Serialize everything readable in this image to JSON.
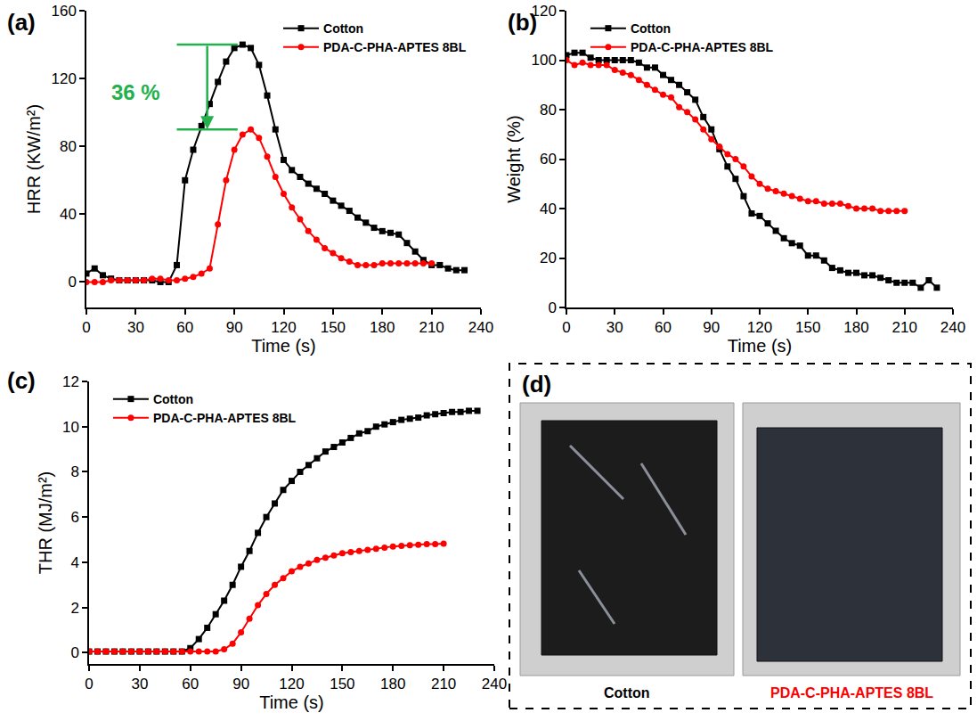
{
  "chart_data": [
    {
      "type": "line",
      "letter": "(a)",
      "x_label": "Time (s)",
      "y_label": "HRR (KW/m²)",
      "x": [
        0,
        5,
        10,
        15,
        20,
        25,
        30,
        35,
        40,
        45,
        50,
        55,
        60,
        65,
        70,
        75,
        80,
        85,
        90,
        95,
        100,
        105,
        110,
        115,
        120,
        125,
        130,
        135,
        140,
        145,
        150,
        155,
        160,
        165,
        170,
        175,
        180,
        185,
        190,
        195,
        200,
        205,
        210,
        215,
        220,
        225,
        230
      ],
      "series": [
        {
          "name": "Cotton",
          "color": "#000000",
          "marker": "square",
          "line_style": "solid",
          "values": [
            5,
            8,
            4,
            2,
            1,
            1,
            1,
            1,
            1,
            0,
            0,
            10,
            60,
            78,
            92,
            105,
            118,
            130,
            138,
            140,
            138,
            128,
            110,
            90,
            72,
            66,
            62,
            58,
            55,
            52,
            48,
            45,
            42,
            38,
            35,
            32,
            30,
            29,
            28,
            23,
            18,
            13,
            10,
            10,
            8,
            7,
            7
          ]
        },
        {
          "name": "PDA-C-PHA-APTES 8BL",
          "color": "#ff0000",
          "marker": "circle",
          "line_style": "solid",
          "values": [
            0,
            0,
            0,
            1,
            1,
            1,
            1,
            1,
            2,
            2,
            1,
            1,
            2,
            3,
            5,
            8,
            34,
            60,
            78,
            87,
            90,
            85,
            74,
            62,
            52,
            44,
            37,
            30,
            25,
            20,
            17,
            14,
            12,
            10,
            10,
            10,
            11,
            11,
            11,
            11,
            11,
            11,
            11,
            null,
            null,
            null,
            null
          ]
        }
      ],
      "xlim": [
        0,
        240
      ],
      "xticks": [
        0,
        30,
        60,
        90,
        120,
        150,
        180,
        210,
        240
      ],
      "ylim": [
        -15,
        160
      ],
      "yticks": [
        0,
        40,
        80,
        120,
        160
      ],
      "legend": "top right",
      "grid": false,
      "annotations": [
        {
          "text": "36 %",
          "x": 30,
          "y": 112,
          "color": "#22b14c",
          "x_span": [
            55,
            92
          ]
        }
      ]
    },
    {
      "type": "line",
      "letter": "(b)",
      "x_label": "Time (s)",
      "y_label": "Weight (%)",
      "x": [
        0,
        5,
        10,
        15,
        20,
        25,
        30,
        35,
        40,
        45,
        50,
        55,
        60,
        65,
        70,
        75,
        80,
        85,
        90,
        95,
        100,
        105,
        110,
        115,
        120,
        125,
        130,
        135,
        140,
        145,
        150,
        155,
        160,
        165,
        170,
        175,
        180,
        185,
        190,
        195,
        200,
        205,
        210,
        215,
        220,
        225,
        230
      ],
      "series": [
        {
          "name": "Cotton",
          "color": "#000000",
          "marker": "square",
          "line_style": "solid",
          "values": [
            102,
            103,
            103,
            101,
            100,
            100,
            100,
            100,
            100,
            99,
            97,
            97,
            94,
            92,
            90,
            87,
            84,
            77,
            72,
            64,
            57,
            52,
            45,
            38,
            37,
            34,
            31,
            28,
            26,
            25,
            21,
            21,
            19,
            16,
            15,
            14,
            14,
            13,
            13,
            12,
            11,
            10,
            10,
            10,
            8,
            11,
            8
          ]
        },
        {
          "name": "PDA-C-PHA-APTES 8BL",
          "color": "#ff0000",
          "marker": "circle",
          "line_style": "solid",
          "values": [
            100,
            98,
            99,
            98,
            98,
            98,
            96,
            95,
            94,
            92,
            90,
            88,
            86,
            85,
            81,
            79,
            76,
            72,
            68,
            65,
            62,
            60,
            57,
            53,
            50,
            48,
            47,
            46,
            45,
            44,
            43,
            43,
            42,
            42,
            42,
            41,
            40,
            40,
            40,
            39,
            39,
            39,
            39,
            null,
            null,
            null,
            null
          ]
        }
      ],
      "xlim": [
        0,
        240
      ],
      "xticks": [
        0,
        30,
        60,
        90,
        120,
        150,
        180,
        210,
        240
      ],
      "ylim": [
        0,
        120
      ],
      "yticks": [
        0,
        20,
        40,
        60,
        80,
        100,
        120
      ],
      "legend": "top left",
      "grid": false
    },
    {
      "type": "line",
      "letter": "(c)",
      "x_label": "Time (s)",
      "y_label": "THR (MJ/m²)",
      "x": [
        0,
        5,
        10,
        15,
        20,
        25,
        30,
        35,
        40,
        45,
        50,
        55,
        60,
        65,
        70,
        75,
        80,
        85,
        90,
        95,
        100,
        105,
        110,
        115,
        120,
        125,
        130,
        135,
        140,
        145,
        150,
        155,
        160,
        165,
        170,
        175,
        180,
        185,
        190,
        195,
        200,
        205,
        210,
        215,
        220,
        225,
        230
      ],
      "series": [
        {
          "name": "Cotton",
          "color": "#000000",
          "marker": "square",
          "line_style": "solid",
          "values": [
            0.05,
            0.05,
            0.05,
            0.05,
            0.05,
            0.05,
            0.05,
            0.05,
            0.05,
            0.05,
            0.05,
            0.05,
            0.2,
            0.6,
            1.1,
            1.7,
            2.3,
            3.0,
            3.8,
            4.5,
            5.3,
            6.0,
            6.6,
            7.2,
            7.6,
            8.0,
            8.3,
            8.6,
            8.9,
            9.1,
            9.3,
            9.5,
            9.7,
            9.8,
            10.0,
            10.1,
            10.2,
            10.3,
            10.35,
            10.4,
            10.5,
            10.55,
            10.6,
            10.65,
            10.65,
            10.7,
            10.7
          ]
        },
        {
          "name": "PDA-C-PHA-APTES 8BL",
          "color": "#ff0000",
          "marker": "circle",
          "line_style": "solid",
          "values": [
            0.05,
            0.05,
            0.05,
            0.05,
            0.05,
            0.05,
            0.05,
            0.05,
            0.05,
            0.05,
            0.05,
            0.05,
            0.05,
            0.05,
            0.05,
            0.05,
            0.15,
            0.4,
            0.9,
            1.5,
            2.1,
            2.6,
            3.0,
            3.3,
            3.6,
            3.8,
            3.95,
            4.1,
            4.2,
            4.3,
            4.4,
            4.45,
            4.5,
            4.55,
            4.6,
            4.65,
            4.7,
            4.72,
            4.75,
            4.77,
            4.8,
            4.8,
            4.82,
            null,
            null,
            null,
            null
          ]
        }
      ],
      "xlim": [
        0,
        240
      ],
      "xticks": [
        0,
        30,
        60,
        90,
        120,
        150,
        180,
        210,
        240
      ],
      "ylim": [
        -0.5,
        12
      ],
      "yticks": [
        0,
        2,
        4,
        6,
        8,
        10,
        12
      ],
      "legend": "top left",
      "grid": false
    }
  ],
  "photos": {
    "letter": "(d)",
    "captions": [
      {
        "text": "Cotton",
        "color": "#000000"
      },
      {
        "text": "PDA-C-PHA-APTES 8BL",
        "color": "#ff0000"
      }
    ]
  }
}
